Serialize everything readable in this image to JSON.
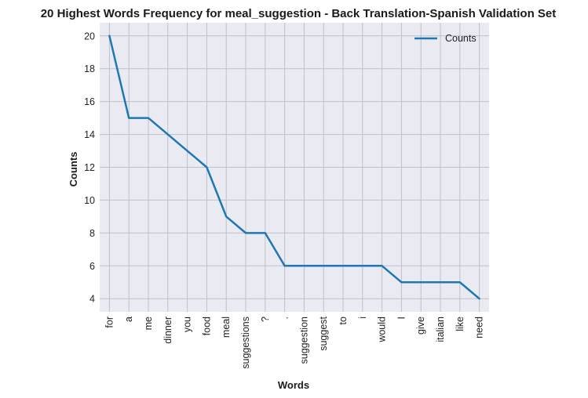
{
  "chart_data": {
    "type": "line",
    "title": "20 Highest Words Frequency for meal_suggestion - Back Translation-Spanish Validation Set",
    "xlabel": "Words",
    "ylabel": "Counts",
    "categories": [
      "for",
      "a",
      "me",
      "dinner",
      "you",
      "food",
      "meal",
      "suggestions",
      "?",
      ".",
      "suggestion",
      "suggest",
      "to",
      "i",
      "would",
      "I",
      "give",
      "italian",
      "like",
      "need"
    ],
    "series": [
      {
        "name": "Counts",
        "values": [
          20,
          15,
          15,
          14,
          13,
          12,
          9,
          8,
          8,
          6,
          6,
          6,
          6,
          6,
          6,
          5,
          5,
          5,
          5,
          4
        ]
      }
    ],
    "ylim": [
      3.2,
      20.8
    ],
    "yticks": [
      4,
      6,
      8,
      10,
      12,
      14,
      16,
      18,
      20
    ],
    "grid": true,
    "legend": "top-right",
    "colors": {
      "line": "#1f77b4",
      "background": "#eaeaf2",
      "grid": "#c0c0c8"
    }
  }
}
